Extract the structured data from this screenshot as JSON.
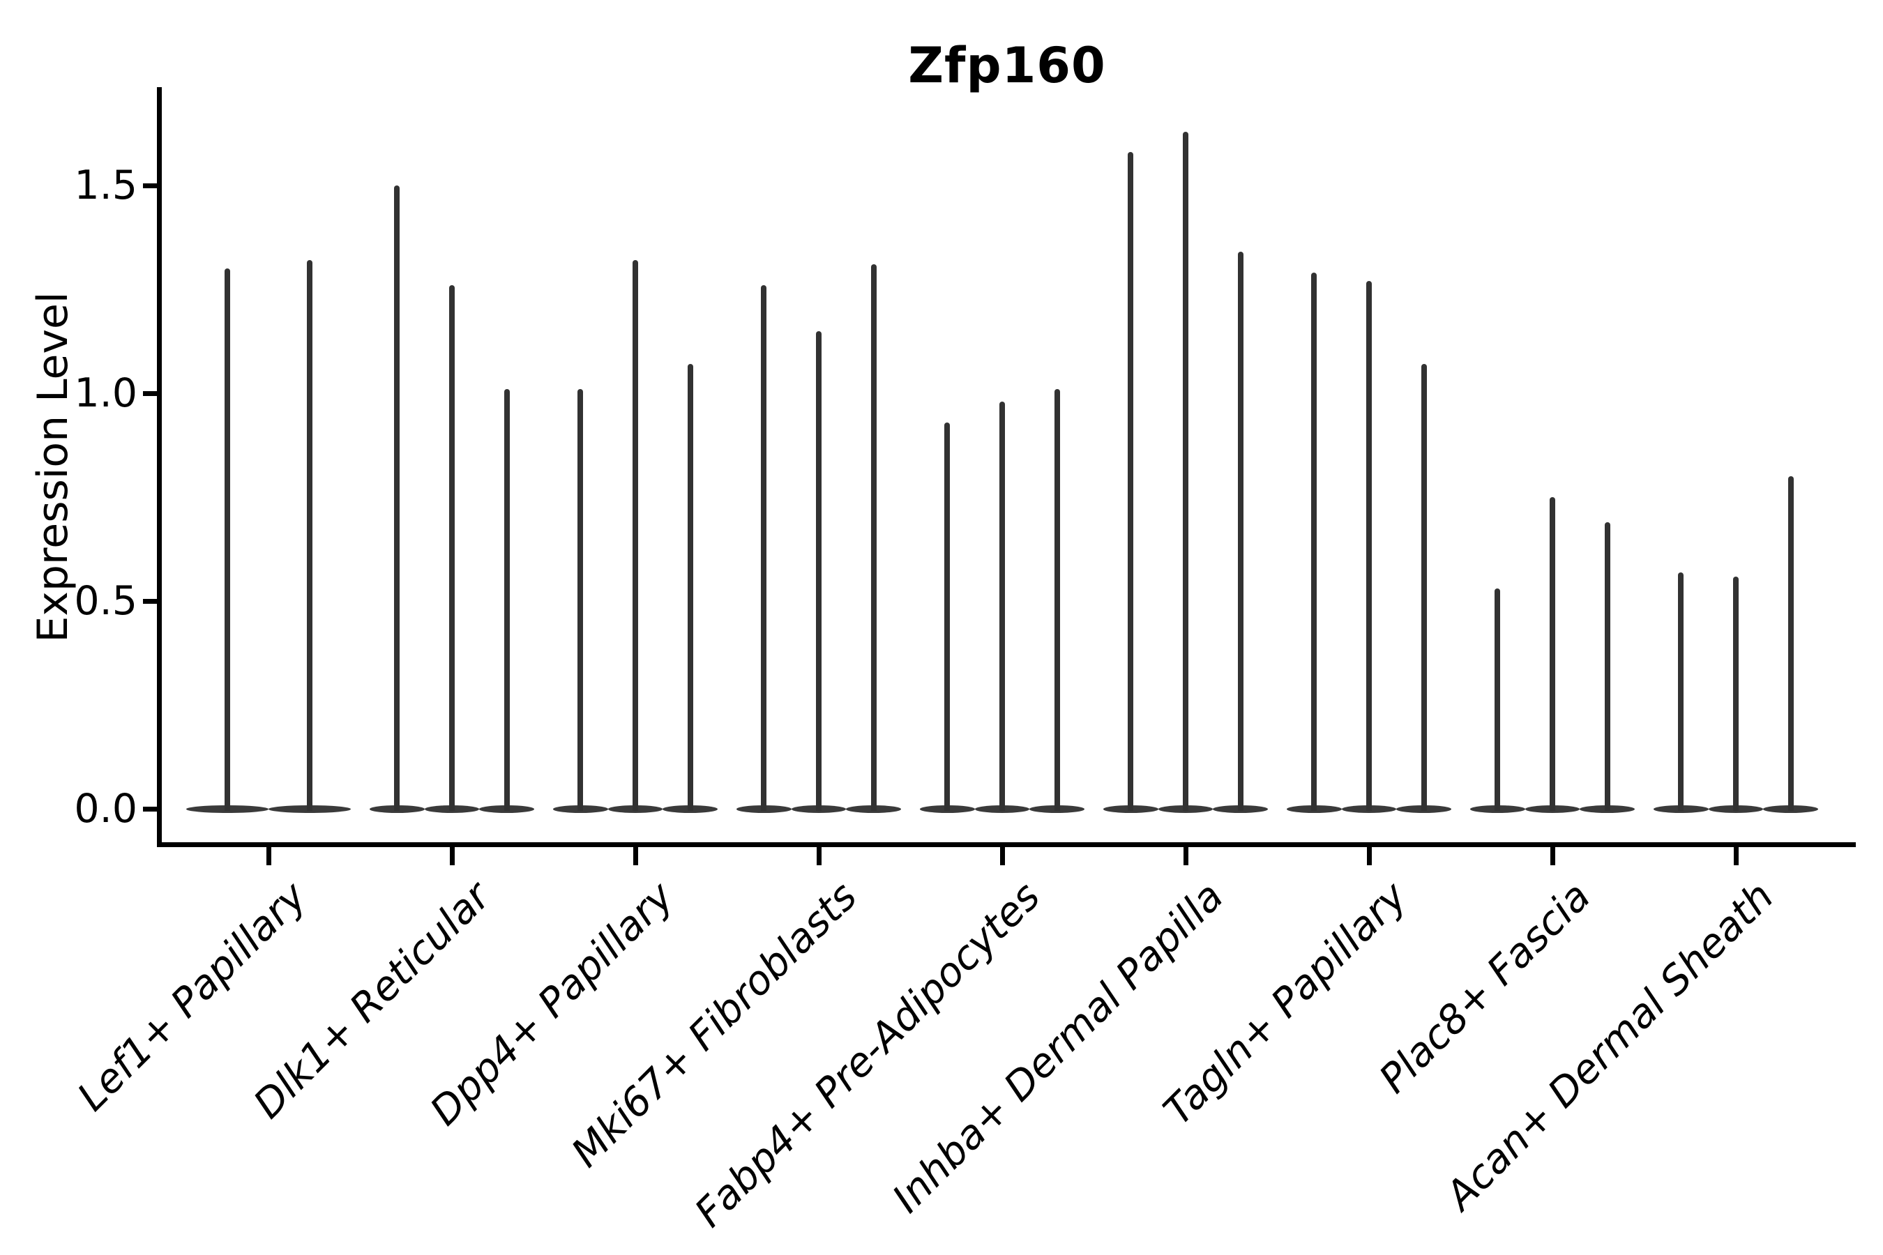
{
  "page": {
    "background": "#ffffff"
  },
  "chart_data": {
    "type": "violin",
    "title": "Zfp160",
    "ylabel": "Expression Level",
    "xlabel": "",
    "yticks": [
      0.0,
      0.5,
      1.0,
      1.5
    ],
    "ytick_labels": [
      "0.0",
      "0.5",
      "1.0",
      "1.5"
    ],
    "ylim": [
      -0.09,
      1.74
    ],
    "grid": false,
    "legend": false,
    "violin_color": "#333333",
    "base_color": "#3a3a3a",
    "axis_color": "#000000",
    "categories": [
      "Lef1+ Papillary",
      "Dlk1+ Reticular",
      "Dpp4+ Papillary",
      "Mki67+ Fibroblasts",
      "Fabp4+ Pre-Adipocytes",
      "Inhba+ Dermal Papilla",
      "Tagln+ Papillary",
      "Plac8+ Fascia",
      "Acan+ Dermal Sheath"
    ],
    "violins_max_expression": [
      [
        1.3,
        1.32
      ],
      [
        1.5,
        1.26,
        1.01
      ],
      [
        1.01,
        1.32,
        1.07
      ],
      [
        1.26,
        1.15,
        1.31
      ],
      [
        0.93,
        0.98,
        1.01
      ],
      [
        1.58,
        1.63,
        1.34
      ],
      [
        1.29,
        1.27,
        1.07
      ],
      [
        0.53,
        0.75,
        0.69
      ],
      [
        0.57,
        0.56,
        0.8
      ]
    ],
    "description": "Violin plot: expression density concentrated at 0 (wide flat base on baseline) with a thin spike rising to each violin's maximum expression value."
  }
}
